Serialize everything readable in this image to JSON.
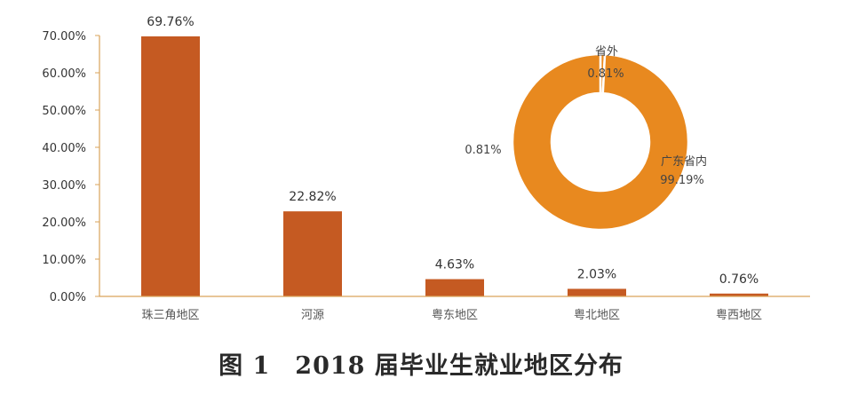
{
  "caption": "图 1　2018 届毕业生就业地区分布",
  "colors": {
    "bar": "#C55A22",
    "donut": "#E8891F",
    "axis": "#D9A35A"
  },
  "chart_data": [
    {
      "type": "bar",
      "categories": [
        "珠三角地区",
        "河源",
        "粤东地区",
        "粤北地区",
        "粤西地区"
      ],
      "values": [
        69.76,
        22.82,
        4.63,
        2.03,
        0.76
      ],
      "data_labels": [
        "69.76%",
        "22.82%",
        "4.63%",
        "2.03%",
        "0.76%"
      ],
      "ylim": [
        0,
        70
      ],
      "yticks": [
        0,
        10,
        20,
        30,
        40,
        50,
        60,
        70
      ],
      "ytick_labels": [
        "0.00%",
        "10.00%",
        "20.00%",
        "30.00%",
        "40.00%",
        "50.00%",
        "60.00%",
        "70.00%"
      ],
      "grid": false
    },
    {
      "type": "pie",
      "donut": true,
      "slices": [
        {
          "name": "省外",
          "value": 0.81,
          "label": "0.81%"
        },
        {
          "name": "广东省内",
          "value": 99.19,
          "label": "99.19%"
        }
      ],
      "extra_label": "0.81%"
    }
  ]
}
